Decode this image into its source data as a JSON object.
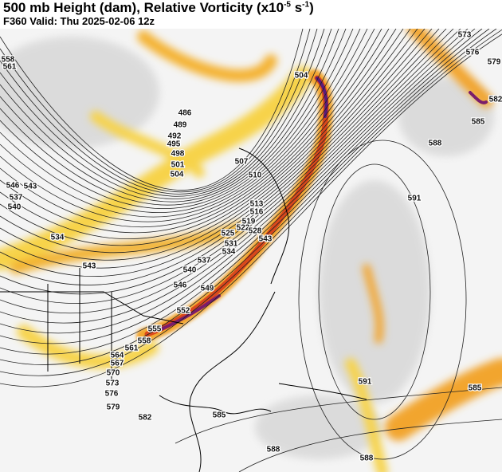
{
  "header": {
    "title_parts": [
      "500 mb Height (dam), Relative Vorticity (x10",
      "-5",
      " s",
      "-1",
      ")"
    ],
    "subtitle": "F360 Valid: Thu 2025-02-06 12z"
  },
  "contour_labels": [
    "573",
    "576",
    "579",
    "582",
    "585",
    "588",
    "591",
    "504",
    "486",
    "489",
    "492",
    "495",
    "498",
    "501",
    "504",
    "507",
    "510",
    "513",
    "516",
    "519",
    "522",
    "525",
    "528",
    "531",
    "534",
    "537",
    "540",
    "543",
    "546",
    "549",
    "552",
    "555",
    "558",
    "561",
    "564",
    "567",
    "570",
    "573",
    "576",
    "579",
    "582",
    "585",
    "588",
    "588",
    "591",
    "534",
    "543",
    "540",
    "537",
    "546",
    "543",
    "558",
    "561",
    "585"
  ]
}
